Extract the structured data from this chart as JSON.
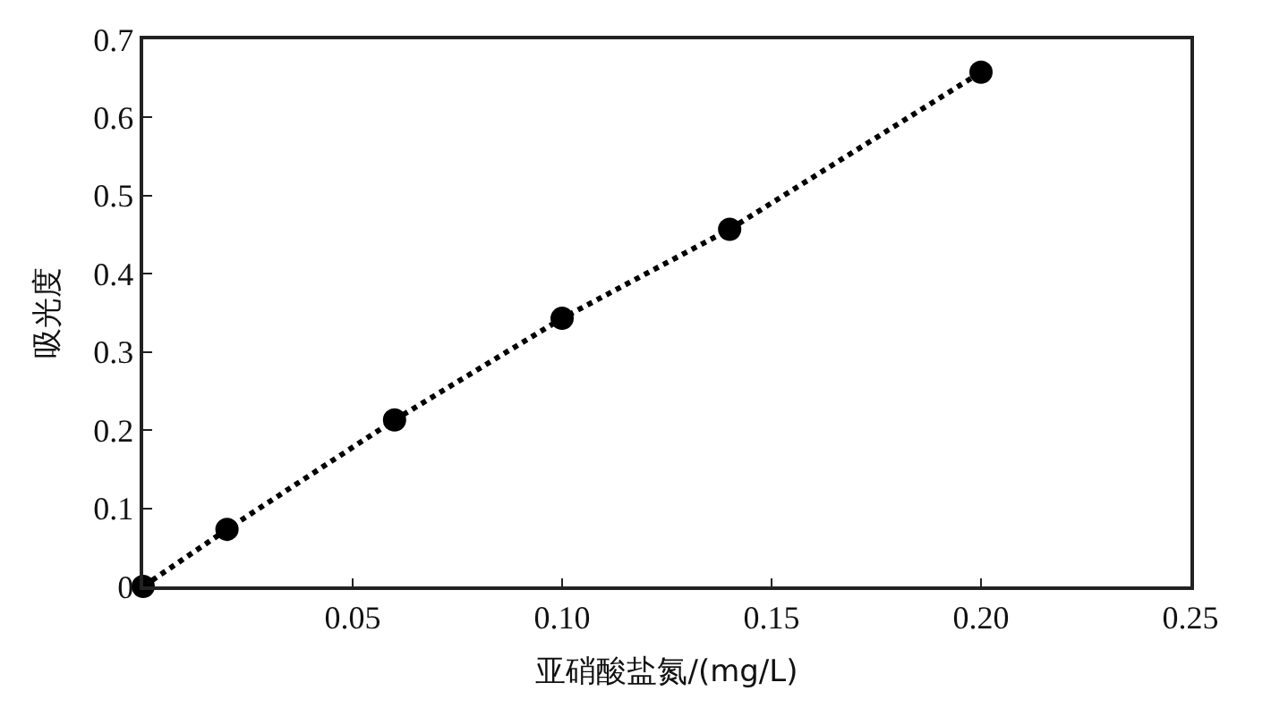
{
  "chart_data": {
    "type": "line",
    "xlabel": "亚硝酸盐氮/(mg/L)",
    "ylabel": "吸光度",
    "x": [
      0,
      0.02,
      0.06,
      0.1,
      0.14,
      0.2
    ],
    "series": [
      {
        "color": "#000000",
        "values": [
          0,
          0.073,
          0.213,
          0.343,
          0.457,
          0.658
        ]
      }
    ],
    "xlim": [
      0,
      0.25
    ],
    "xticks": [
      0.05,
      {
        "value": 0.1,
        "label": "0.10"
      },
      0.15,
      {
        "value": 0.2,
        "label": "0.20"
      },
      0.25
    ],
    "ylim": [
      0,
      0.7
    ],
    "yticks": [
      0,
      0.1,
      0.2,
      0.3,
      0.4,
      0.5,
      0.6,
      0.7
    ],
    "marker": "circle",
    "line_style": "dotted"
  }
}
